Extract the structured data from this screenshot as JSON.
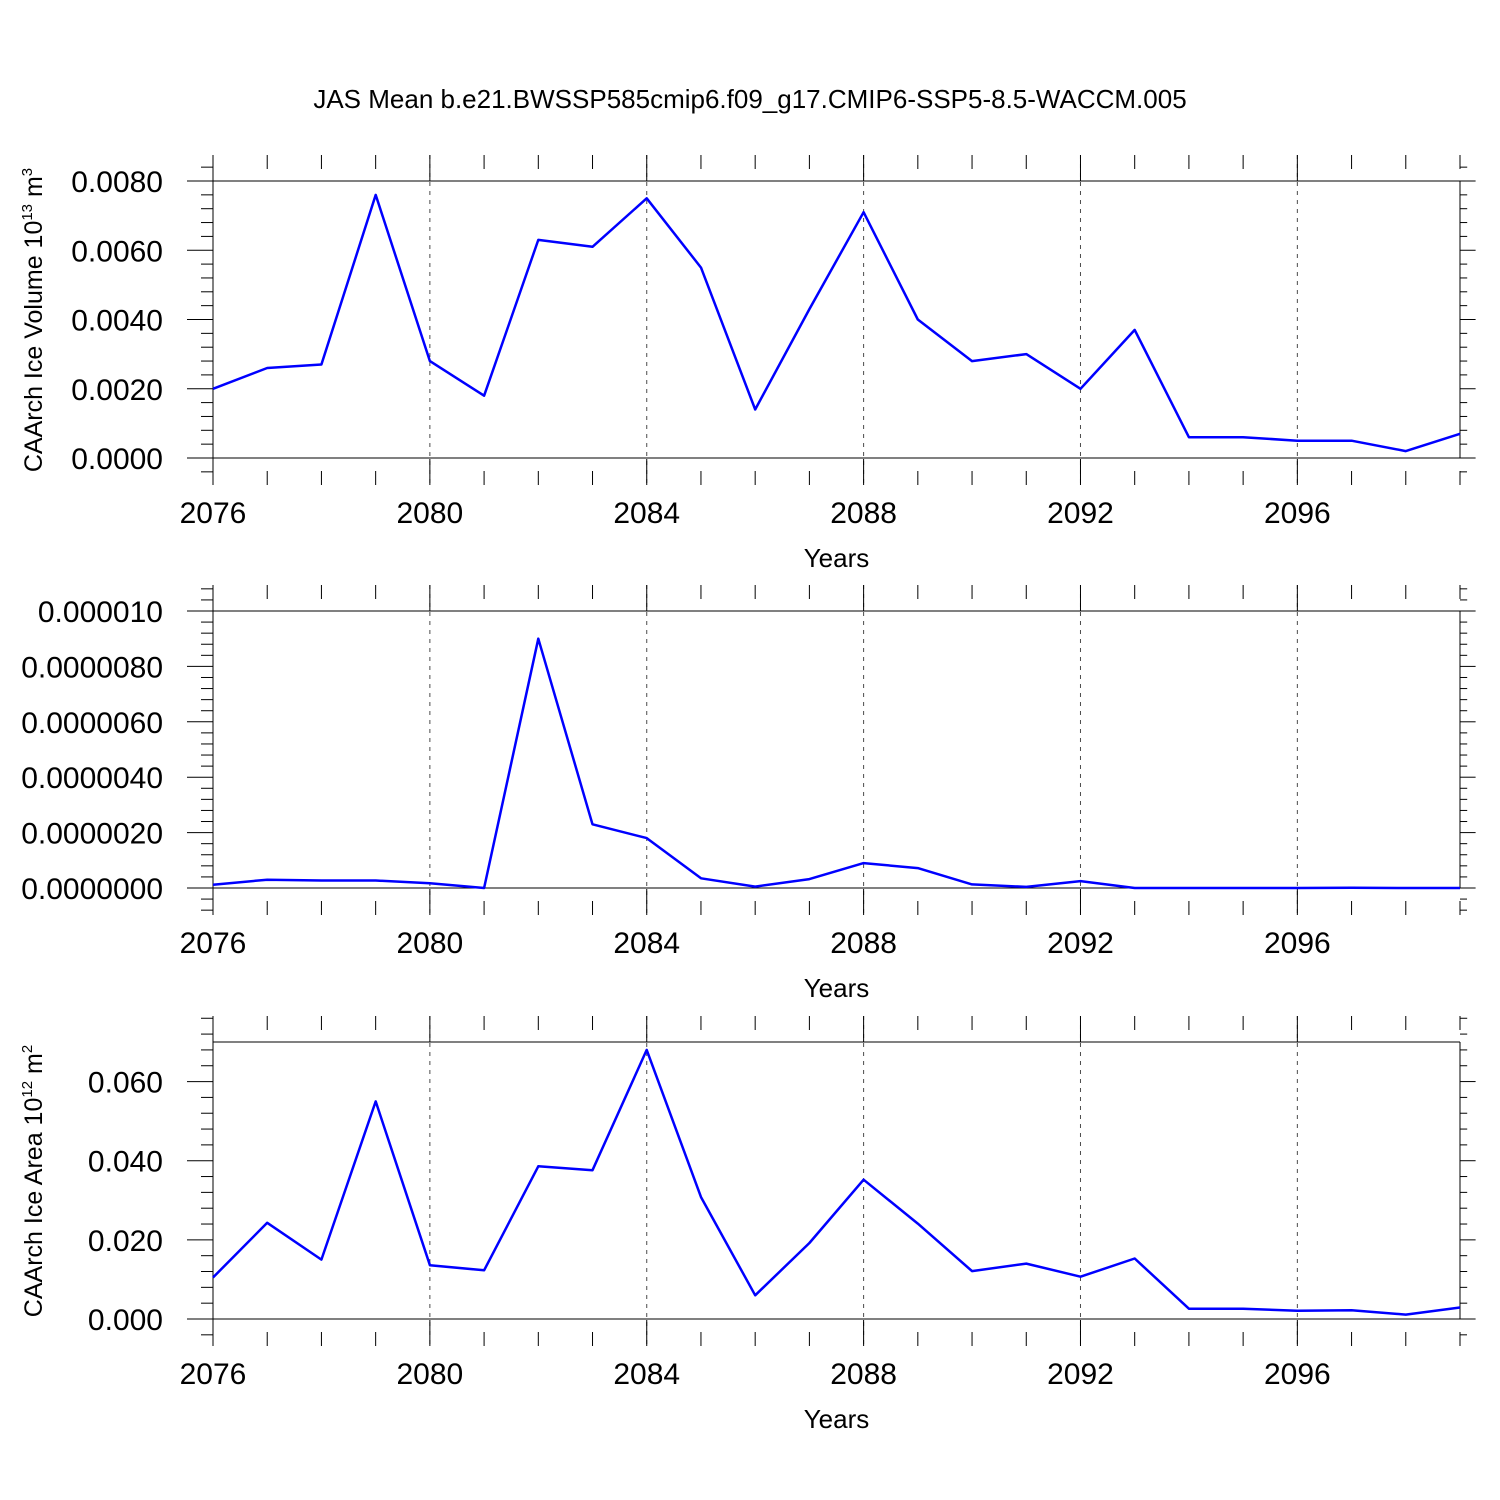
{
  "chart_data": [
    {
      "type": "line",
      "title": "JAS Mean b.e21.BWSSP585cmip6.f09_g17.CMIP6-SSP5-8.5-WACCM.005",
      "xlabel": "Years",
      "ylabel_base": "CAArch Ice Volume 10",
      "ylabel_exp": "13",
      "ylabel_unit": " m",
      "ylabel_unit_exp": "3",
      "xlim": [
        2076,
        2099
      ],
      "ylim": [
        0,
        0.008
      ],
      "xticks": [
        2076,
        2080,
        2084,
        2088,
        2092,
        2096
      ],
      "xtick_labels": [
        "2076",
        "2080",
        "2084",
        "2088",
        "2092",
        "2096"
      ],
      "yticks": [
        0,
        0.002,
        0.004,
        0.006,
        0.008
      ],
      "ytick_labels": [
        "0.0000",
        "0.0020",
        "0.0040",
        "0.0060",
        "0.0080"
      ],
      "grid": "dashed vertical at major x ticks",
      "series": [
        {
          "name": "CAArch Ice Volume",
          "color": "#0000ff",
          "x": [
            2076,
            2077,
            2078,
            2079,
            2080,
            2081,
            2082,
            2083,
            2084,
            2085,
            2086,
            2087,
            2088,
            2089,
            2090,
            2091,
            2092,
            2093,
            2094,
            2095,
            2096,
            2097,
            2098,
            2099
          ],
          "values": [
            0.002,
            0.0026,
            0.0027,
            0.0076,
            0.0028,
            0.0018,
            0.0063,
            0.0061,
            0.0075,
            0.0055,
            0.0014,
            0.0043,
            0.0071,
            0.004,
            0.0028,
            0.003,
            0.002,
            0.0037,
            0.0006,
            0.0006,
            0.0005,
            0.0005,
            0.0002,
            0.0007
          ]
        }
      ]
    },
    {
      "type": "line",
      "xlabel": "Years",
      "xlim": [
        2076,
        2099
      ],
      "ylim": [
        0,
        1e-05
      ],
      "xticks": [
        2076,
        2080,
        2084,
        2088,
        2092,
        2096
      ],
      "xtick_labels": [
        "2076",
        "2080",
        "2084",
        "2088",
        "2092",
        "2096"
      ],
      "yticks": [
        0,
        2e-06,
        4e-06,
        6e-06,
        8e-06,
        1e-05
      ],
      "ytick_labels": [
        "0.0000000",
        "0.0000020",
        "0.0000040",
        "0.0000060",
        "0.0000080",
        "0.000010"
      ],
      "grid": "dashed vertical at major x ticks",
      "series": [
        {
          "name": "series",
          "color": "#0000ff",
          "x": [
            2076,
            2077,
            2078,
            2079,
            2080,
            2081,
            2082,
            2083,
            2084,
            2085,
            2086,
            2087,
            2088,
            2089,
            2090,
            2091,
            2092,
            2093,
            2094,
            2095,
            2096,
            2097,
            2098,
            2099
          ],
          "values": [
            1.2e-07,
            3e-07,
            2.7e-07,
            2.7e-07,
            1.7e-07,
            0.0,
            9e-06,
            2.3e-06,
            1.8e-06,
            3.5e-07,
            5e-08,
            3.2e-07,
            9e-07,
            7.2e-07,
            1.3e-07,
            4e-08,
            2.5e-07,
            0.0,
            0.0,
            0.0,
            0.0,
            1e-08,
            0.0,
            0.0
          ]
        }
      ]
    },
    {
      "type": "line",
      "xlabel": "Years",
      "ylabel_base": "CAArch Ice Area 10",
      "ylabel_exp": "12",
      "ylabel_unit": " m",
      "ylabel_unit_exp": "2",
      "xlim": [
        2076,
        2099
      ],
      "ylim": [
        0,
        0.07
      ],
      "xticks": [
        2076,
        2080,
        2084,
        2088,
        2092,
        2096
      ],
      "xtick_labels": [
        "2076",
        "2080",
        "2084",
        "2088",
        "2092",
        "2096"
      ],
      "yticks": [
        0,
        0.02,
        0.04,
        0.06
      ],
      "ytick_labels": [
        "0.000",
        "0.020",
        "0.040",
        "0.060"
      ],
      "grid": "dashed vertical at major x ticks",
      "series": [
        {
          "name": "CAArch Ice Area",
          "color": "#0000ff",
          "x": [
            2076,
            2077,
            2078,
            2079,
            2080,
            2081,
            2082,
            2083,
            2084,
            2085,
            2086,
            2087,
            2088,
            2089,
            2090,
            2091,
            2092,
            2093,
            2094,
            2095,
            2096,
            2097,
            2098,
            2099
          ],
          "values": [
            0.0105,
            0.0243,
            0.015,
            0.055,
            0.0136,
            0.0123,
            0.0386,
            0.0376,
            0.068,
            0.0308,
            0.006,
            0.0192,
            0.0352,
            0.0241,
            0.0121,
            0.014,
            0.0107,
            0.0153,
            0.0026,
            0.0026,
            0.0021,
            0.0022,
            0.0011,
            0.0029
          ]
        }
      ]
    }
  ]
}
